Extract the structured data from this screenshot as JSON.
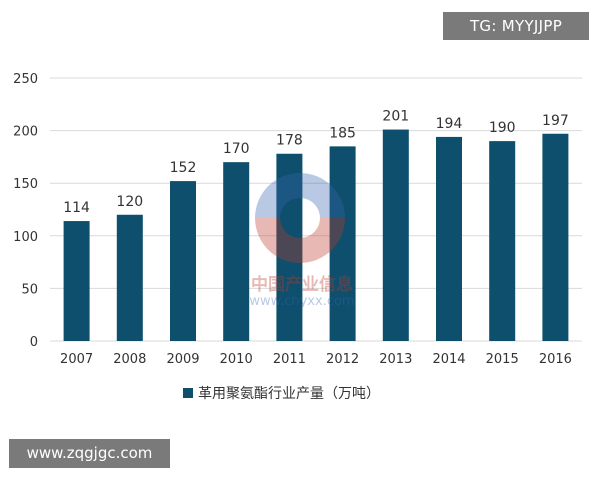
{
  "chart_data": {
    "type": "bar",
    "categories": [
      "2007",
      "2008",
      "2009",
      "2010",
      "2011",
      "2012",
      "2013",
      "2014",
      "2015",
      "2016"
    ],
    "series": [
      {
        "name": "革用聚氨酯行业产量（万吨）",
        "values": [
          114,
          120,
          152,
          170,
          178,
          185,
          201,
          194,
          190,
          197
        ]
      }
    ],
    "ylim": [
      0,
      250
    ],
    "yticks": [
      0,
      50,
      100,
      150,
      200,
      250
    ],
    "grid": true,
    "legend_position": "bottom",
    "title": "",
    "xlabel": "",
    "ylabel": ""
  },
  "colors": {
    "bar": "#0d4f6c",
    "grid": "#d9d9d9",
    "badge_bg": "#7a7a7a"
  },
  "badges": {
    "telegram": "TG: MYYJJPP",
    "website": "www.zqgjgc.com"
  },
  "watermark": {
    "name": "中国产业信息",
    "url": "www.chyxx.com"
  }
}
